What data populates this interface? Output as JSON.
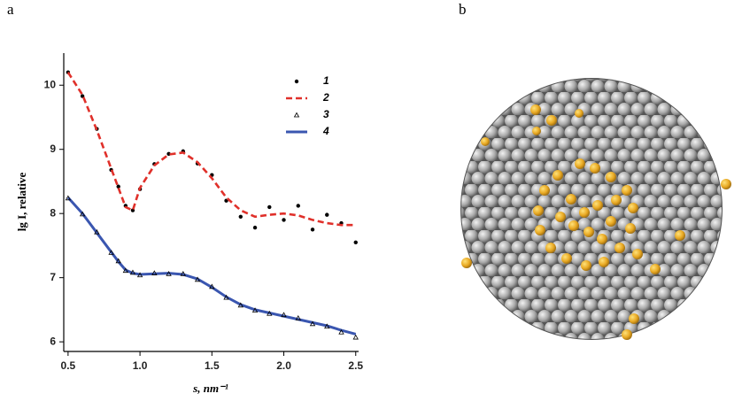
{
  "panel_labels": [
    "a",
    "b"
  ],
  "chart_data": {
    "type": "line",
    "xlabel": "s, nm⁻¹",
    "ylabel": "lg I, relative",
    "x": [
      0.5,
      0.6,
      0.7,
      0.8,
      0.85,
      0.9,
      0.95,
      1.0,
      1.1,
      1.2,
      1.3,
      1.4,
      1.5,
      1.6,
      1.7,
      1.8,
      1.9,
      2.0,
      2.1,
      2.2,
      2.3,
      2.4,
      2.5
    ],
    "xlim": [
      0.47,
      2.52
    ],
    "xticks": [
      {
        "value": 0.5,
        "label": "0.5"
      },
      {
        "value": 1.0,
        "label": "1.0"
      },
      {
        "value": 1.5,
        "label": "1.5"
      },
      {
        "value": 2.0,
        "label": "2.0"
      },
      {
        "value": 2.5,
        "label": "2.5"
      }
    ],
    "ylim": [
      5.85,
      10.5
    ],
    "yticks": [
      6,
      7,
      8,
      9,
      10
    ],
    "legend": "upper right",
    "series": [
      {
        "name": "1",
        "color": "#000000",
        "style": "dots",
        "values": [
          10.2,
          9.83,
          9.32,
          8.68,
          8.42,
          8.12,
          8.05,
          8.38,
          8.77,
          8.93,
          8.97,
          8.78,
          8.6,
          8.2,
          7.95,
          7.78,
          8.1,
          7.9,
          8.12,
          7.75,
          7.98,
          7.85,
          7.55
        ]
      },
      {
        "name": "2",
        "color": "#e0302a",
        "style": "dashed",
        "values": [
          10.2,
          9.85,
          9.3,
          8.7,
          8.4,
          8.1,
          8.05,
          8.4,
          8.75,
          8.92,
          8.95,
          8.8,
          8.55,
          8.25,
          8.05,
          7.95,
          7.98,
          8.0,
          7.97,
          7.9,
          7.85,
          7.82,
          7.82
        ]
      },
      {
        "name": "3",
        "color": "#000000",
        "style": "triangles",
        "values": [
          8.24,
          7.99,
          7.71,
          7.39,
          7.26,
          7.11,
          7.08,
          7.04,
          7.07,
          7.06,
          7.06,
          6.97,
          6.86,
          6.69,
          6.57,
          6.49,
          6.44,
          6.42,
          6.37,
          6.28,
          6.24,
          6.15,
          6.07
        ]
      },
      {
        "name": "4",
        "color": "#3a56b0",
        "style": "solid",
        "values": [
          8.25,
          8.0,
          7.7,
          7.4,
          7.25,
          7.12,
          7.07,
          7.05,
          7.06,
          7.07,
          7.05,
          6.98,
          6.85,
          6.7,
          6.58,
          6.5,
          6.45,
          6.4,
          6.35,
          6.3,
          6.25,
          6.18,
          6.12
        ]
      }
    ]
  }
}
